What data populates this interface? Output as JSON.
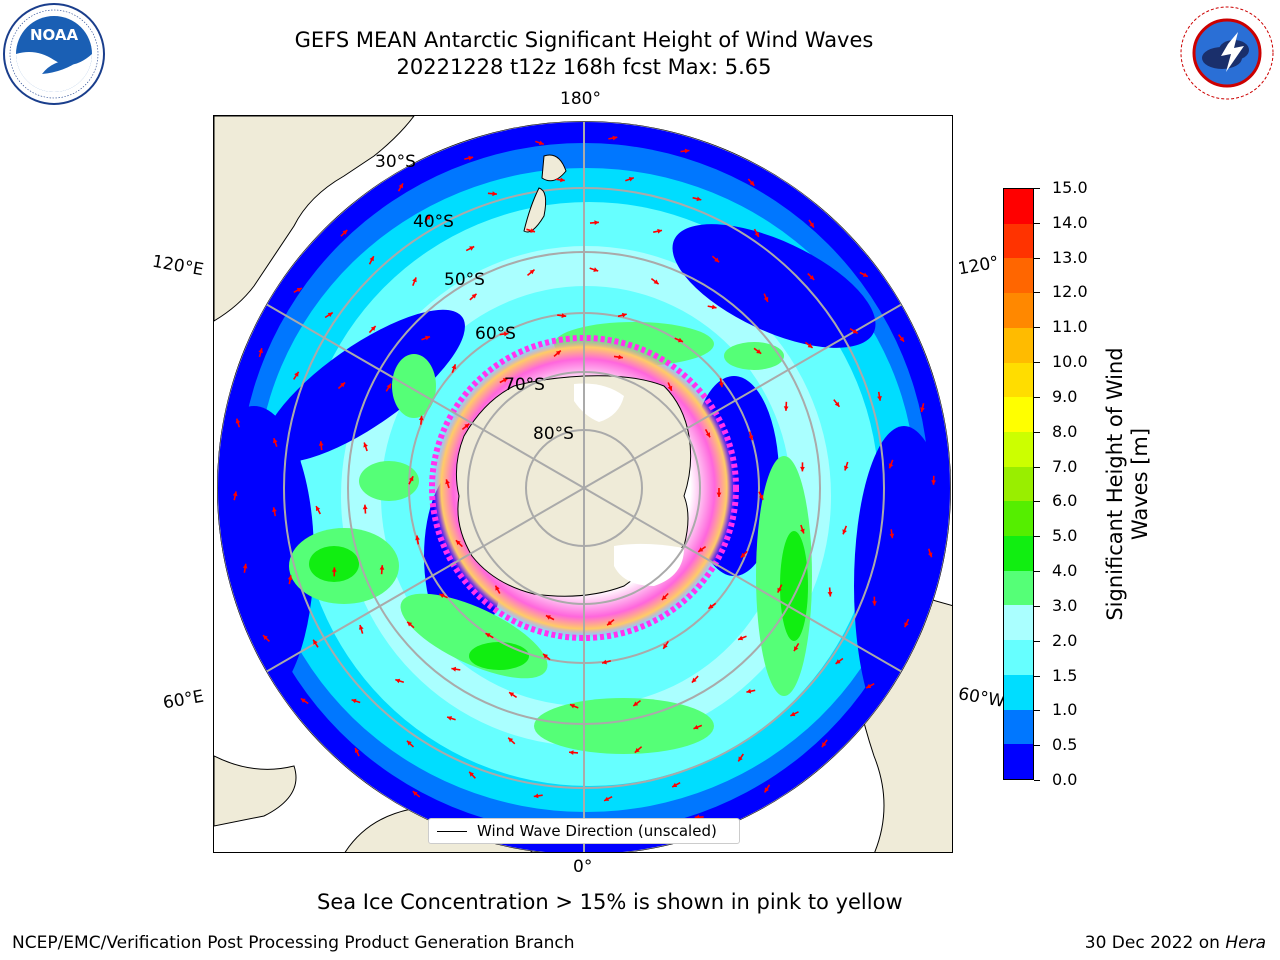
{
  "header": {
    "title_line1": "GEFS MEAN Antarctic Significant Height of Wind Waves",
    "title_line2": "20221228 t12z 168h fcst   Max: 5.65"
  },
  "map": {
    "projection": "south polar stereographic",
    "longitude_labels": {
      "top": "180°",
      "bottom": "0°",
      "left_upper": "120°E",
      "left_lower": "60°E",
      "right_upper": "120°",
      "right_lower": "60°W"
    },
    "latitude_labels": [
      "30°S",
      "40°S",
      "50°S",
      "60°S",
      "70°S",
      "80°S"
    ],
    "legend_label": "Wind Wave Direction (unscaled)",
    "arrow_color": "#ff0000",
    "land_color": "#efebd8",
    "grid_color": "#aaaaaa"
  },
  "colorbar": {
    "title_line1": "Significant Height of Wind",
    "title_line2": "Waves [m]",
    "tick_labels": [
      "0.0",
      "0.5",
      "1.0",
      "1.5",
      "2.0",
      "3.0",
      "4.0",
      "5.0",
      "6.0",
      "7.0",
      "8.0",
      "9.0",
      "10.0",
      "11.0",
      "12.0",
      "13.0",
      "14.0",
      "15.0"
    ],
    "colors": [
      "#0000ff",
      "#0077ff",
      "#00ddff",
      "#66ffff",
      "#aaffff",
      "#55ff77",
      "#11ee11",
      "#55ee00",
      "#99ee00",
      "#ccff00",
      "#ffff00",
      "#ffdd00",
      "#ffbb00",
      "#ff8800",
      "#ff6600",
      "#ff3300",
      "#ff0000"
    ]
  },
  "ice_note": "Sea Ice Concentration > 15% is shown in pink to yellow",
  "footer": {
    "left": "NCEP/EMC/Verification Post Processing Product Generation Branch",
    "right_date": "30 Dec 2022 on ",
    "right_host": "Hera"
  }
}
